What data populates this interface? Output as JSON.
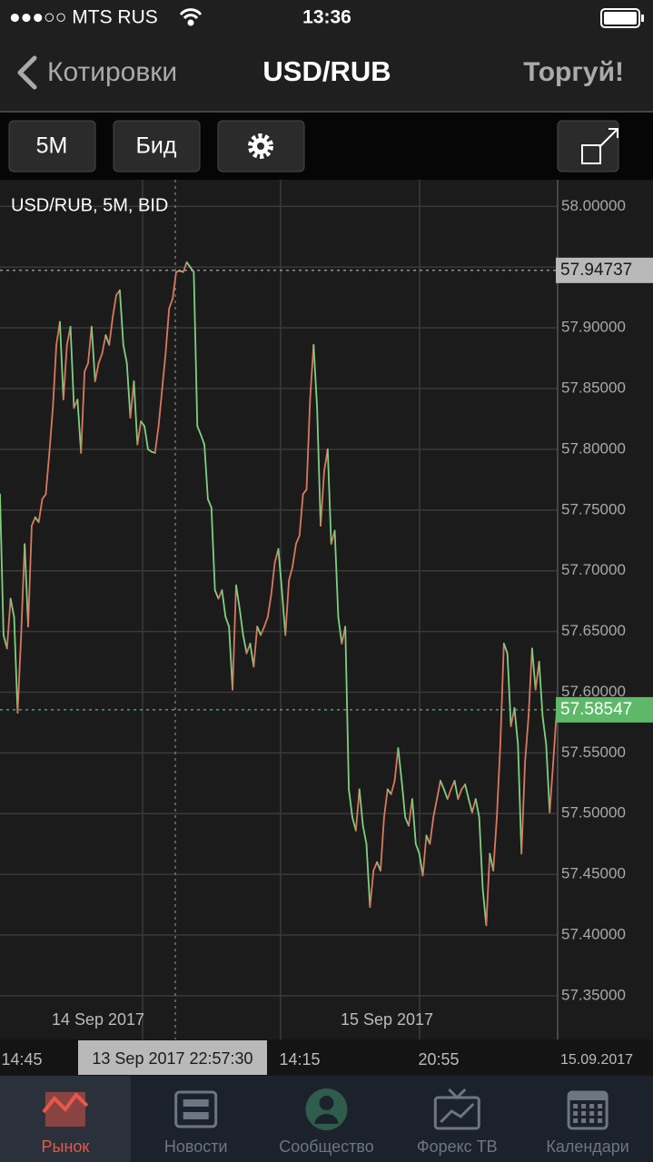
{
  "status_bar": {
    "carrier": "●●●○○ MTS RUS",
    "time": "13:36"
  },
  "nav": {
    "back": "Котировки",
    "title": "USD/RUB",
    "action": "Торгуй!"
  },
  "toolbar": {
    "timeframe": "5M",
    "price_type": "Бид"
  },
  "chart_data": {
    "type": "line",
    "title": "USD/RUB, 5M, BID",
    "up_color": "#d9785f",
    "down_color": "#7fcf80",
    "grid": true,
    "values": [
      57.763,
      57.647,
      57.636,
      57.677,
      57.662,
      57.583,
      57.647,
      57.722,
      57.654,
      57.737,
      57.744,
      57.74,
      57.759,
      57.763,
      57.797,
      57.834,
      57.886,
      57.905,
      57.841,
      57.886,
      57.901,
      57.834,
      57.841,
      57.797,
      57.864,
      57.871,
      57.901,
      57.856,
      57.871,
      57.879,
      57.894,
      57.886,
      57.909,
      57.927,
      57.931,
      57.886,
      57.871,
      57.826,
      57.856,
      57.804,
      57.823,
      57.819,
      57.8,
      57.798,
      57.797,
      57.819,
      57.849,
      57.879,
      57.916,
      57.924,
      57.946,
      57.947,
      57.946,
      57.954,
      57.95,
      57.946,
      57.819,
      57.812,
      57.804,
      57.759,
      57.752,
      57.684,
      57.677,
      57.684,
      57.662,
      57.654,
      57.602,
      57.688,
      57.669,
      57.647,
      57.632,
      57.64,
      57.621,
      57.654,
      57.647,
      57.654,
      57.662,
      57.681,
      57.707,
      57.718,
      57.684,
      57.647,
      57.692,
      57.703,
      57.722,
      57.729,
      57.763,
      57.767,
      57.841,
      57.886,
      57.834,
      57.737,
      57.782,
      57.8,
      57.722,
      57.733,
      57.662,
      57.64,
      57.654,
      57.52,
      57.497,
      57.486,
      57.52,
      57.49,
      57.475,
      57.423,
      57.453,
      57.46,
      57.453,
      57.497,
      57.52,
      57.516,
      57.527,
      57.554,
      57.527,
      57.497,
      57.49,
      57.512,
      57.475,
      57.467,
      57.449,
      57.482,
      57.475,
      57.497,
      57.512,
      57.527,
      57.52,
      57.512,
      57.52,
      57.527,
      57.512,
      57.52,
      57.524,
      57.512,
      57.501,
      57.512,
      57.497,
      57.438,
      57.408,
      57.467,
      57.453,
      57.497,
      57.557,
      57.64,
      57.632,
      57.572,
      57.587,
      57.557,
      57.467,
      57.542,
      57.58,
      57.636,
      57.602,
      57.625,
      57.58,
      57.557,
      57.501,
      57.542,
      57.585
    ],
    "ylim": [
      57.314,
      58.022
    ],
    "yticks": [
      {
        "value": 58.0,
        "label": "58.00000"
      },
      {
        "value": 57.95,
        "label": "57.95000"
      },
      {
        "value": 57.9,
        "label": "57.90000"
      },
      {
        "value": 57.85,
        "label": "57.85000"
      },
      {
        "value": 57.8,
        "label": "57.80000"
      },
      {
        "value": 57.75,
        "label": "57.75000"
      },
      {
        "value": 57.7,
        "label": "57.70000"
      },
      {
        "value": 57.65,
        "label": "57.65000"
      },
      {
        "value": 57.6,
        "label": "57.60000"
      },
      {
        "value": 57.55,
        "label": "57.55000"
      },
      {
        "value": 57.5,
        "label": "57.50000"
      },
      {
        "value": 57.45,
        "label": "57.45000"
      },
      {
        "value": 57.4,
        "label": "57.40000"
      },
      {
        "value": 57.35,
        "label": "57.35000"
      }
    ],
    "reference_lines": [
      {
        "value": 57.94737,
        "color": "#b9b9b9",
        "text_color": "#1a1a1a"
      },
      {
        "value": 57.58547,
        "color": "#5fb86a",
        "text_color": "#ffffff"
      }
    ],
    "date_labels": [
      "14 Sep 2017",
      "15 Sep 2017"
    ],
    "time_labels": [
      "14:45",
      "14:15",
      "20:55",
      "15.09.2017"
    ],
    "crosshair_label": "13 Sep 2017 22:57:30"
  },
  "tab_bar": {
    "tabs": [
      {
        "label": "Рынок",
        "active": true
      },
      {
        "label": "Новости",
        "active": false
      },
      {
        "label": "Сообщество",
        "active": false
      },
      {
        "label": "Форекс ТВ",
        "active": false
      },
      {
        "label": "Календари",
        "active": false
      }
    ]
  }
}
